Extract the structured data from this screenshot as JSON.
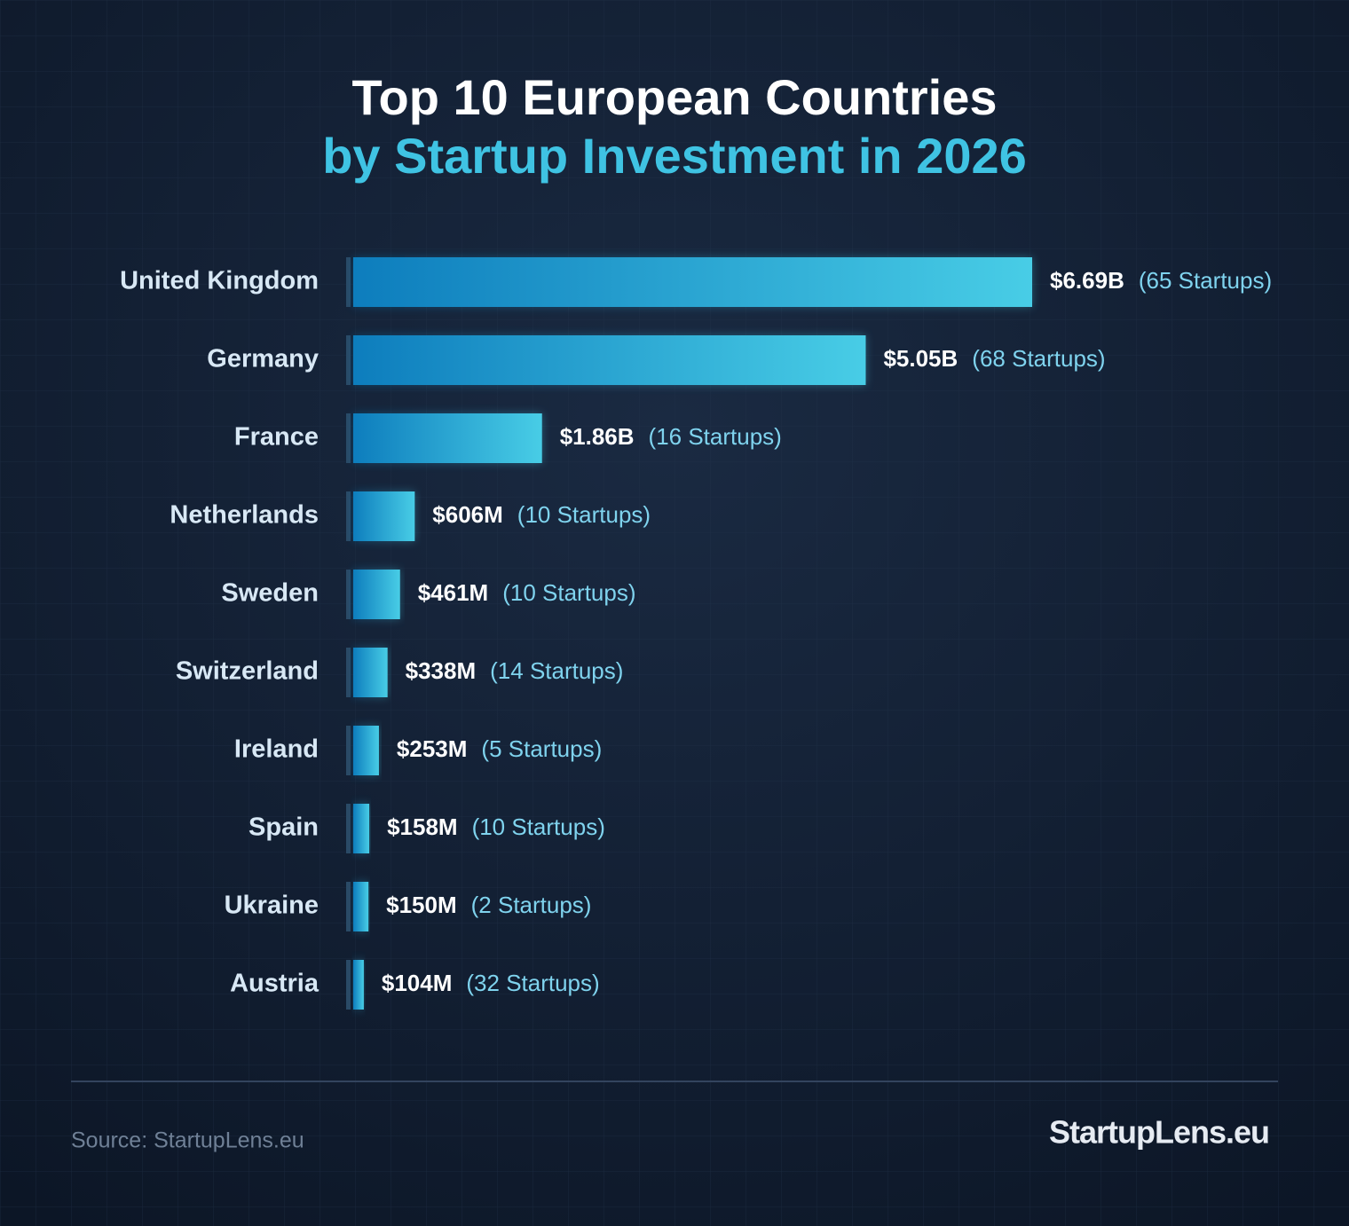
{
  "chart_data": {
    "type": "bar",
    "orientation": "horizontal",
    "title": "Top 10 European Countries",
    "subtitle": "by Startup Investment in 2026",
    "categories": [
      "United Kingdom",
      "Germany",
      "France",
      "Netherlands",
      "Sweden",
      "Switzerland",
      "Ireland",
      "Spain",
      "Ukraine",
      "Austria"
    ],
    "values": [
      6690,
      5050,
      1860,
      606,
      461,
      338,
      253,
      158,
      150,
      104
    ],
    "value_labels": [
      "$6.69B",
      "$5.05B",
      "$1.86B",
      "$606M",
      "$461M",
      "$338M",
      "$253M",
      "$158M",
      "$150M",
      "$104M"
    ],
    "startup_labels": [
      "(65 Startups)",
      "(68 Startups)",
      "(16 Startups)",
      "(10 Startups)",
      "(10 Startups)",
      "(14 Startups)",
      "(5 Startups)",
      "(10 Startups)",
      "(2 Startups)",
      "(32 Startups)"
    ],
    "color": [
      "#0d7dbd",
      "#48cde6"
    ],
    "source": "Source: StartupLens.eu",
    "brand": "StartupLens.eu"
  }
}
